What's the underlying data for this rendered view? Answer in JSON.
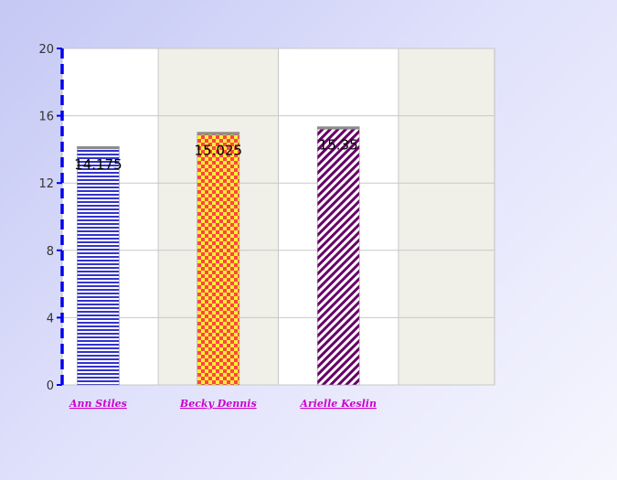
{
  "chart_data": {
    "type": "bar",
    "categories": [
      "Ann Stiles",
      "Becky Dennis",
      "Arielle Keslin"
    ],
    "values": [
      14.175,
      15.025,
      15.35
    ],
    "data_labels": [
      "14.175",
      "15.025",
      "15.35"
    ],
    "ylim": [
      0,
      20
    ],
    "yticks": [
      0,
      4,
      8,
      12,
      16,
      20
    ],
    "grid": true,
    "legend": "none",
    "bar_styles": [
      {
        "pattern": "horizontal-stripes",
        "color": "#3333cc",
        "background": "#ffffff"
      },
      {
        "pattern": "checkerboard",
        "color": "#ff3333",
        "background": "#ffee33"
      },
      {
        "pattern": "diagonal-stripes",
        "color": "#660066",
        "background": "#ffffff"
      }
    ],
    "colors": {
      "plot_band_even": "#ffffff",
      "plot_band_odd": "#f0f0e8",
      "grid": "#c8c8c8",
      "y_axis": "#0000ee",
      "category_label": "#cc00cc"
    }
  }
}
